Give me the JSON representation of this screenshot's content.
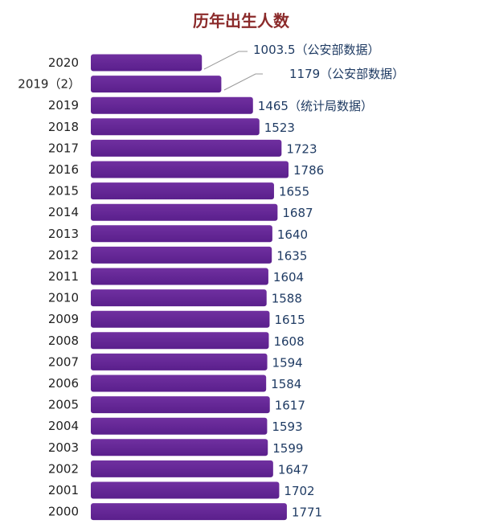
{
  "chart_data": {
    "type": "bar",
    "orientation": "horizontal",
    "title": "历年出生人数",
    "xlabel": "",
    "ylabel": "",
    "grid": false,
    "legend": "none",
    "bar_color": "#7030a0",
    "categories": [
      "2020",
      "2019（2）",
      "2019",
      "2018",
      "2017",
      "2016",
      "2015",
      "2014",
      "2013",
      "2012",
      "2011",
      "2010",
      "2009",
      "2008",
      "2007",
      "2006",
      "2005",
      "2004",
      "2003",
      "2002",
      "2001",
      "2000"
    ],
    "values": [
      1003.5,
      1179,
      1465,
      1523,
      1723,
      1786,
      1655,
      1687,
      1640,
      1635,
      1604,
      1588,
      1615,
      1608,
      1594,
      1584,
      1617,
      1593,
      1599,
      1647,
      1702,
      1771
    ],
    "data_labels": [
      "1003.5（公安部数据）",
      "1179（公安部数据）",
      "1465（统计局数据）",
      "1523",
      "1723",
      "1786",
      "1655",
      "1687",
      "1640",
      "1635",
      "1604",
      "1588",
      "1615",
      "1608",
      "1594",
      "1584",
      "1617",
      "1593",
      "1599",
      "1647",
      "1702",
      "1771"
    ],
    "xlim": [
      0,
      1786
    ]
  }
}
